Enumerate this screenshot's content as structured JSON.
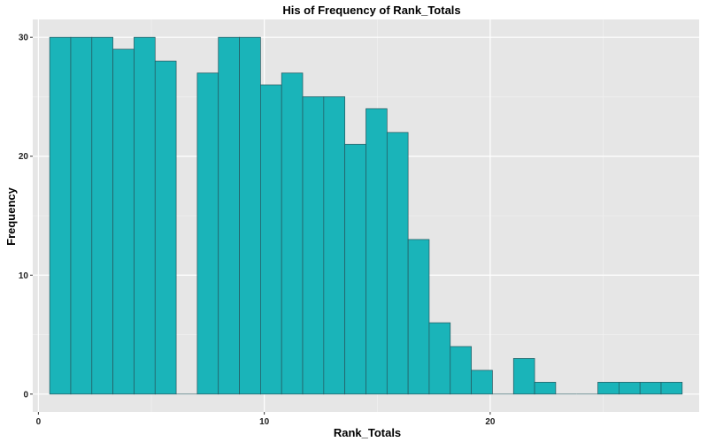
{
  "chart_data": {
    "type": "bar",
    "title": "His of Frequency of Rank_Totals",
    "xlabel": "Rank_Totals",
    "ylabel": "Frequency",
    "xlim": [
      -0.25,
      29.25
    ],
    "ylim": [
      -1.5,
      31.5
    ],
    "x_ticks": [
      0,
      10,
      20
    ],
    "y_ticks": [
      0,
      10,
      20,
      30
    ],
    "bin_start": 0.5,
    "bin_width": 0.9333,
    "values": [
      30,
      30,
      30,
      29,
      30,
      28,
      0,
      27,
      30,
      30,
      26,
      27,
      25,
      25,
      21,
      24,
      22,
      13,
      6,
      4,
      2,
      0,
      3,
      1,
      0,
      0,
      1,
      1,
      1,
      1
    ],
    "grid": true,
    "legend": "none",
    "colors": {
      "bar_fill": "#1ab4b9",
      "bar_stroke": "#26575e",
      "panel_bg": "#e6e6e6",
      "grid_major": "#ffffff",
      "grid_minor": "#f2f2f2"
    }
  }
}
